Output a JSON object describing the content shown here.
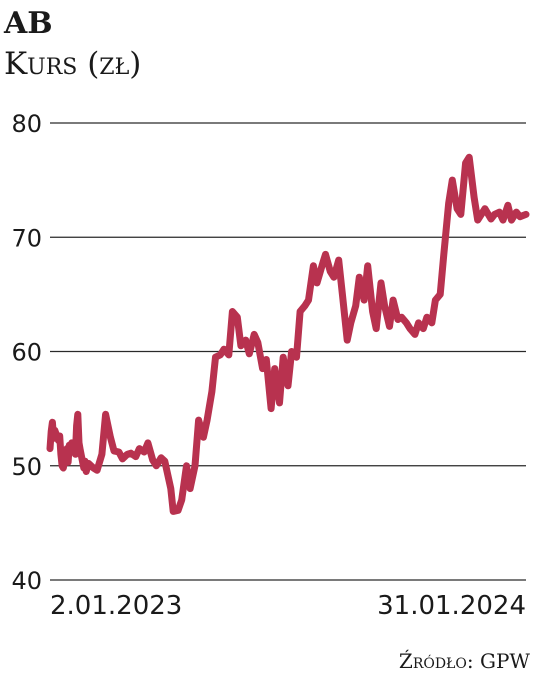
{
  "chart_data": {
    "type": "line",
    "title": "AB",
    "subtitle": "Kurs (zł)",
    "source": "Źródło: GPW",
    "ylim": [
      40,
      80
    ],
    "yticks": [
      "40",
      "50",
      "60",
      "70",
      "80"
    ],
    "grid": true,
    "x_start_label": "2.01.2023",
    "x_end_label": "31.01.2024",
    "series": [
      {
        "color": "#b8324f",
        "x": [
          "2023-01-02",
          "2023-01-03",
          "2023-01-04",
          "2023-01-05",
          "2023-01-06",
          "2023-01-09",
          "2023-01-10",
          "2023-01-11",
          "2023-01-12",
          "2023-01-13",
          "2023-01-16",
          "2023-01-17",
          "2023-01-18",
          "2023-01-19",
          "2023-01-20",
          "2023-01-23",
          "2023-01-24",
          "2023-01-25",
          "2023-01-26",
          "2023-01-27",
          "2023-01-30",
          "2023-01-31",
          "2023-02-01",
          "2023-02-03",
          "2023-02-07",
          "2023-02-10",
          "2023-02-14",
          "2023-02-17",
          "2023-02-21",
          "2023-02-24",
          "2023-02-28",
          "2023-03-03",
          "2023-03-07",
          "2023-03-10",
          "2023-03-14",
          "2023-03-17",
          "2023-03-21",
          "2023-03-24",
          "2023-03-28",
          "2023-03-31",
          "2023-04-04",
          "2023-04-07",
          "2023-04-12",
          "2023-04-14",
          "2023-04-18",
          "2023-04-21",
          "2023-04-25",
          "2023-04-28",
          "2023-05-02",
          "2023-05-05",
          "2023-05-09",
          "2023-05-12",
          "2023-05-16",
          "2023-05-19",
          "2023-05-23",
          "2023-05-26",
          "2023-05-30",
          "2023-06-02",
          "2023-06-06",
          "2023-06-09",
          "2023-06-13",
          "2023-06-16",
          "2023-06-20",
          "2023-06-23",
          "2023-06-27",
          "2023-06-30",
          "2023-07-04",
          "2023-07-07",
          "2023-07-11",
          "2023-07-14",
          "2023-07-18",
          "2023-07-21",
          "2023-07-25",
          "2023-07-28",
          "2023-08-01",
          "2023-08-04",
          "2023-08-08",
          "2023-08-11",
          "2023-08-16",
          "2023-08-18",
          "2023-08-22",
          "2023-08-25",
          "2023-08-29",
          "2023-09-01",
          "2023-09-05",
          "2023-09-08",
          "2023-09-12",
          "2023-09-15",
          "2023-09-19",
          "2023-09-22",
          "2023-09-26",
          "2023-09-29",
          "2023-10-03",
          "2023-10-06",
          "2023-10-10",
          "2023-10-13",
          "2023-10-17",
          "2023-10-20",
          "2023-10-24",
          "2023-10-27",
          "2023-10-31",
          "2023-11-03",
          "2023-11-07",
          "2023-11-10",
          "2023-11-14",
          "2023-11-17",
          "2023-11-21",
          "2023-11-24",
          "2023-11-28",
          "2023-12-01",
          "2023-12-05",
          "2023-12-08",
          "2023-12-12",
          "2023-12-15",
          "2023-12-19",
          "2023-12-22",
          "2023-12-28",
          "2024-01-02",
          "2024-01-05",
          "2024-01-09",
          "2024-01-12",
          "2024-01-16",
          "2024-01-19",
          "2024-01-23",
          "2024-01-26",
          "2024-01-31"
        ],
        "y": [
          51.5,
          53.0,
          53.8,
          52.4,
          53.1,
          52.2,
          52.6,
          51.0,
          50.0,
          49.8,
          51.5,
          50.3,
          51.8,
          51.2,
          52.0,
          51.0,
          53.5,
          54.5,
          52.0,
          51.4,
          49.8,
          50.4,
          49.5,
          50.2,
          49.8,
          49.6,
          51.0,
          54.5,
          52.5,
          51.3,
          51.2,
          50.6,
          51.0,
          51.1,
          50.8,
          51.5,
          51.2,
          52.0,
          50.5,
          50.0,
          50.7,
          50.4,
          48.0,
          46.0,
          46.1,
          47.0,
          50.0,
          48.0,
          50.0,
          54.0,
          52.5,
          54.0,
          56.5,
          59.5,
          59.7,
          60.2,
          59.7,
          63.5,
          63.0,
          60.5,
          61.0,
          59.8,
          61.5,
          60.8,
          58.5,
          59.3,
          55.0,
          58.5,
          55.5,
          59.5,
          57.0,
          60.0,
          59.5,
          63.5,
          64.0,
          64.5,
          67.5,
          66.0,
          67.8,
          68.5,
          67.0,
          66.5,
          68.0,
          65.0,
          61.0,
          62.5,
          64.0,
          66.5,
          64.5,
          67.5,
          63.5,
          62.0,
          66.0,
          64.0,
          62.2,
          64.5,
          62.8,
          63.0,
          62.5,
          62.0,
          61.5,
          62.5,
          62.0,
          63.0,
          62.5,
          64.5,
          65.0,
          68.5,
          73.0,
          75.0,
          72.5,
          72.0,
          76.5,
          77.0,
          73.5,
          71.5,
          72.5,
          71.6,
          72.0,
          72.2,
          71.5,
          72.8,
          71.5,
          72.2,
          71.8,
          72.0
        ]
      }
    ]
  }
}
